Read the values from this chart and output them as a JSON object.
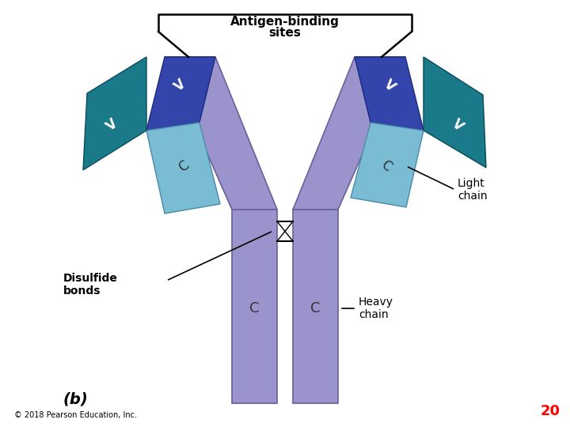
{
  "title_line1": "Antigen-binding",
  "title_line2": "sites",
  "background_color": "#ffffff",
  "heavy_chain_color": "#9b94cc",
  "heavy_chain_edge": "#6a5f9a",
  "lc_V_color": "#3344aa",
  "lc_V_edge": "#1a2a80",
  "lc_C_color": "#7abcd4",
  "lc_C_edge": "#4a8aaa",
  "teal_color": "#1a7a8a",
  "teal_edge": "#0a4a5a",
  "label_light_chain": "Light\nchain",
  "label_heavy_chain": "Heavy\nchain",
  "label_disulfide": "Disulfide\nbonds",
  "label_b": "(b)",
  "copyright": "© 2018 Pearson Education, Inc.",
  "page_number": "20"
}
